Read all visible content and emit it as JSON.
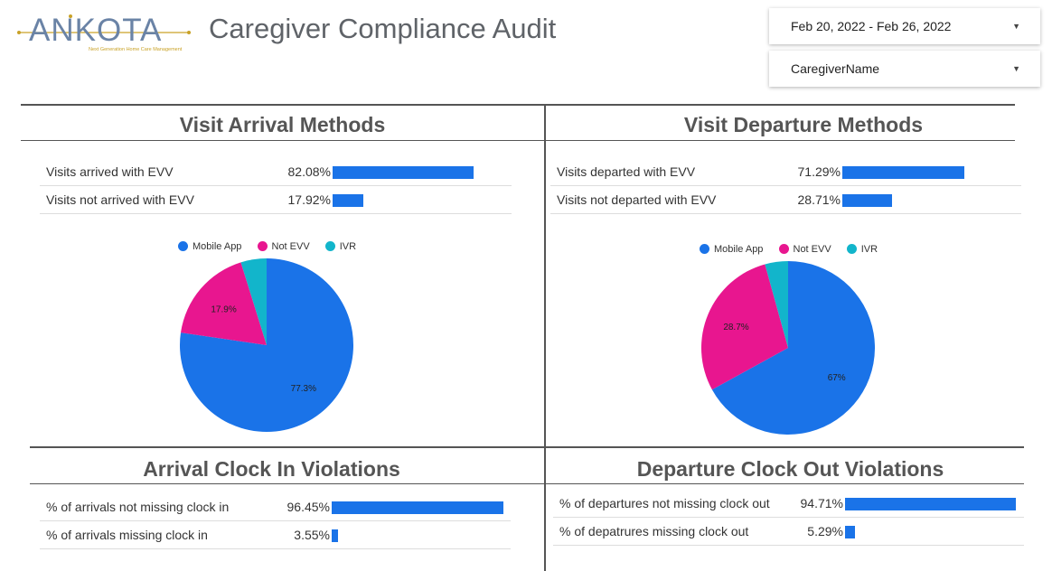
{
  "header": {
    "logo_text": "ANKOTA",
    "logo_tagline": "Next Generation Home Care Management",
    "title": "Caregiver Compliance Audit",
    "date_filter": "Feb 20, 2022 - Feb 26, 2022",
    "caregiver_filter": "CaregiverName"
  },
  "colors": {
    "bar": "#1a73e8",
    "mobile_app": "#1a73e8",
    "not_evv": "#e8168f",
    "ivr": "#12b5cb",
    "logo_blue": "#6a83a6",
    "logo_gold": "#c9a227"
  },
  "arrival": {
    "title": "Visit Arrival Methods",
    "rows": [
      {
        "label": "Visits arrived with EVV",
        "value_text": "82.08%",
        "value": 82.08
      },
      {
        "label": "Visits not arrived with EVV",
        "value_text": "17.92%",
        "value": 17.92
      }
    ]
  },
  "departure": {
    "title": "Visit Departure Methods",
    "rows": [
      {
        "label": "Visits departed with EVV",
        "value_text": "71.29%",
        "value": 71.29
      },
      {
        "label": "Visits not departed with EVV",
        "value_text": "28.71%",
        "value": 28.71
      }
    ]
  },
  "clock_in": {
    "title": "Arrival Clock In Violations",
    "rows": [
      {
        "label": "% of arrivals not missing clock in",
        "value_text": "96.45%",
        "value": 96.45
      },
      {
        "label": "% of arrivals missing clock in",
        "value_text": "3.55%",
        "value": 3.55
      }
    ]
  },
  "clock_out": {
    "title": "Departure Clock Out Violations",
    "rows": [
      {
        "label": "% of departures not missing clock out",
        "value_text": "94.71%",
        "value": 94.71
      },
      {
        "label": "% of depatrures missing clock out",
        "value_text": "5.29%",
        "value": 5.29
      }
    ]
  },
  "chart_data": [
    {
      "type": "pie",
      "legend": [
        "Mobile App",
        "Not EVV",
        "IVR"
      ],
      "legend_placement": "top",
      "slices": [
        {
          "name": "Mobile App",
          "value": 77.3,
          "label": "77.3%"
        },
        {
          "name": "Not EVV",
          "value": 17.9,
          "label": "17.9%"
        },
        {
          "name": "IVR",
          "value": 4.8,
          "label": ""
        }
      ]
    },
    {
      "type": "pie",
      "legend": [
        "Mobile App",
        "Not EVV",
        "IVR"
      ],
      "legend_placement": "top",
      "slices": [
        {
          "name": "Mobile App",
          "value": 67.0,
          "label": "67%"
        },
        {
          "name": "Not EVV",
          "value": 28.7,
          "label": "28.7%"
        },
        {
          "name": "IVR",
          "value": 4.3,
          "label": ""
        }
      ]
    }
  ]
}
